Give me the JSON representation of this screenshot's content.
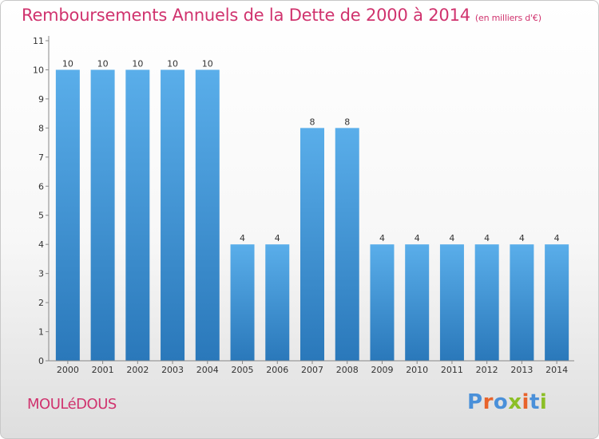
{
  "title": "Remboursements Annuels de la Dette de 2000 à 2014",
  "subtitle": "(en milliers d'€)",
  "commune": "MOULéDOUS",
  "logo": {
    "text": "Proxiti",
    "letter_colors": [
      "#4a90d9",
      "#e8632b",
      "#4a90d9",
      "#8cbf26",
      "#e8632b",
      "#4a90d9",
      "#8cbf26"
    ]
  },
  "colors": {
    "title": "#d0336e",
    "bar_top": "#5aaeea",
    "bar_bottom": "#2a78ba"
  },
  "chart_data": {
    "type": "bar",
    "categories": [
      "2000",
      "2001",
      "2002",
      "2003",
      "2004",
      "2005",
      "2006",
      "2007",
      "2008",
      "2009",
      "2010",
      "2011",
      "2012",
      "2013",
      "2014"
    ],
    "values": [
      10,
      10,
      10,
      10,
      10,
      4,
      4,
      8,
      8,
      4,
      4,
      4,
      4,
      4,
      4
    ],
    "data_labels": [
      "10",
      "10",
      "10",
      "10",
      "10",
      "4",
      "4",
      "8",
      "8",
      "4",
      "4",
      "4",
      "4",
      "4",
      "4"
    ],
    "title": "Remboursements Annuels de la Dette de 2000 à 2014",
    "xlabel": "",
    "ylabel": "",
    "ylim": [
      0,
      11
    ],
    "yticks": [
      0,
      1,
      2,
      3,
      4,
      5,
      6,
      7,
      8,
      9,
      10,
      11
    ],
    "grid": false
  }
}
